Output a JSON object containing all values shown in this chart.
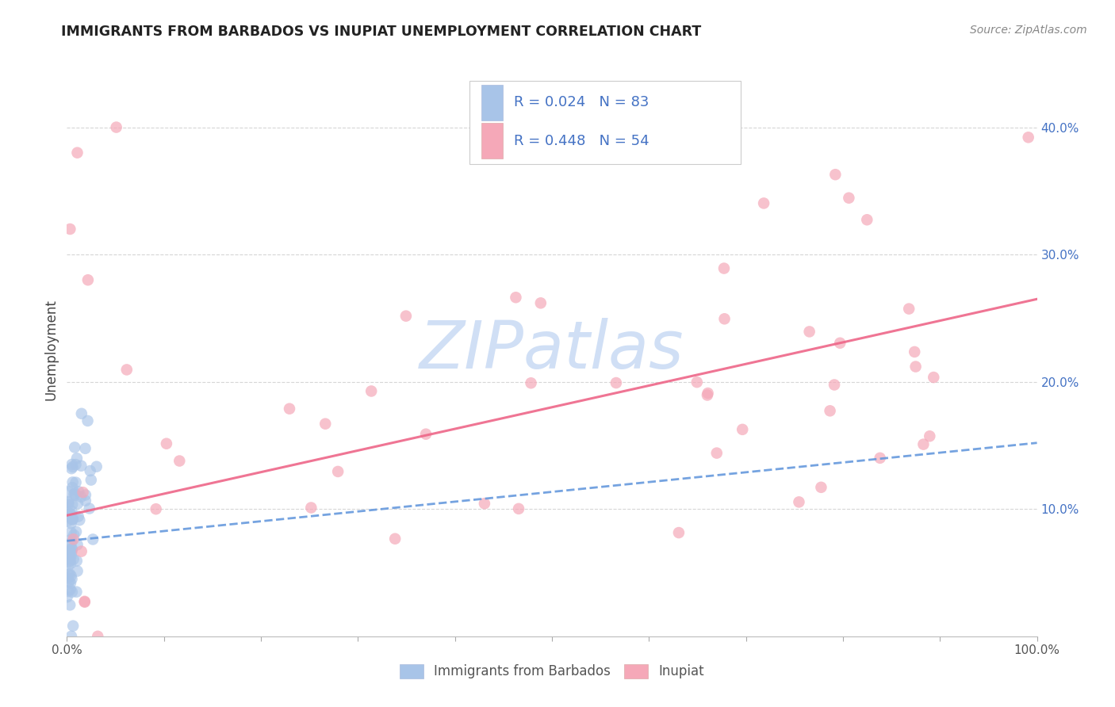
{
  "title": "IMMIGRANTS FROM BARBADOS VS INUPIAT UNEMPLOYMENT CORRELATION CHART",
  "source": "Source: ZipAtlas.com",
  "ylabel": "Unemployment",
  "xlim": [
    0.0,
    1.0
  ],
  "ylim": [
    0.0,
    0.45
  ],
  "legend_r1": "0.024",
  "legend_n1": "83",
  "legend_r2": "0.448",
  "legend_n2": "54",
  "legend_label1": "Immigrants from Barbados",
  "legend_label2": "Inupiat",
  "blue_color": "#a8c4e8",
  "pink_color": "#f5a8b8",
  "blue_line_color": "#6699dd",
  "pink_line_color": "#ee6688",
  "text_blue": "#4472c4",
  "watermark_color": "#d0dff5",
  "blue_trend_x": [
    0.0,
    1.0
  ],
  "blue_trend_y": [
    0.075,
    0.152
  ],
  "pink_trend_x": [
    0.0,
    1.0
  ],
  "pink_trend_y": [
    0.095,
    0.265
  ]
}
